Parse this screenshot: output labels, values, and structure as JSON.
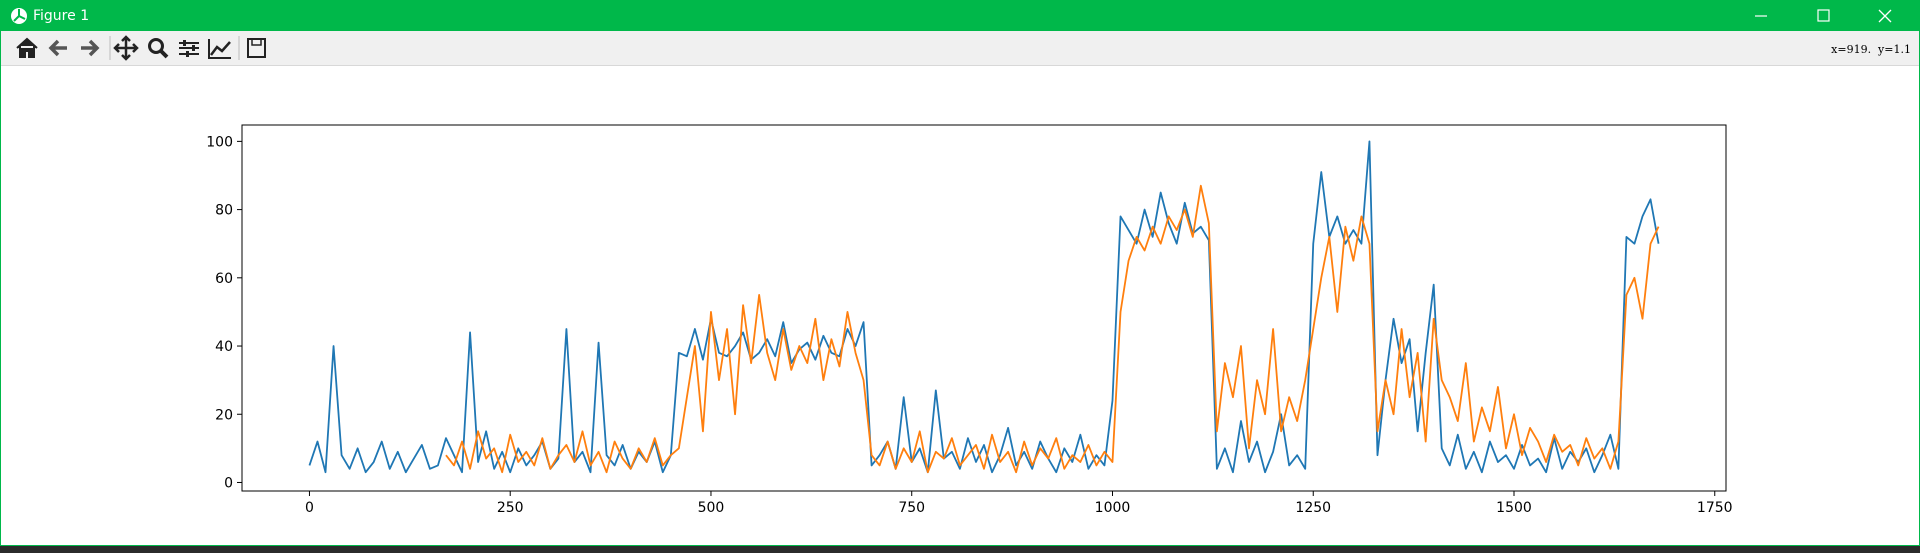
{
  "window": {
    "title": "Figure 1",
    "status": "x=919.  y=1.1"
  },
  "chart_data": {
    "type": "line",
    "x": [
      0,
      10,
      20,
      30,
      40,
      50,
      60,
      70,
      80,
      90,
      100,
      110,
      120,
      130,
      140,
      150,
      160,
      170,
      180,
      190,
      200,
      210,
      220,
      230,
      240,
      250,
      260,
      270,
      280,
      290,
      300,
      310,
      320,
      330,
      340,
      350,
      360,
      370,
      380,
      390,
      400,
      410,
      420,
      430,
      440,
      450,
      460,
      470,
      480,
      490,
      500,
      510,
      520,
      530,
      540,
      550,
      560,
      570,
      580,
      590,
      600,
      610,
      620,
      630,
      640,
      650,
      660,
      670,
      680,
      690,
      700,
      710,
      720,
      730,
      740,
      750,
      760,
      770,
      780,
      790,
      800,
      810,
      820,
      830,
      840,
      850,
      860,
      870,
      880,
      890,
      900,
      910,
      920,
      930,
      940,
      950,
      960,
      970,
      980,
      990,
      1000,
      1010,
      1020,
      1030,
      1040,
      1050,
      1060,
      1070,
      1080,
      1090,
      1100,
      1110,
      1120,
      1130,
      1140,
      1150,
      1160,
      1170,
      1180,
      1190,
      1200,
      1210,
      1220,
      1230,
      1240,
      1250,
      1260,
      1270,
      1280,
      1290,
      1300,
      1310,
      1320,
      1330,
      1340,
      1350,
      1360,
      1370,
      1380,
      1390,
      1400,
      1410,
      1420,
      1430,
      1440,
      1450,
      1460,
      1470,
      1480,
      1490,
      1500,
      1510,
      1520,
      1530,
      1540,
      1550,
      1560,
      1570,
      1580,
      1590,
      1600,
      1610,
      1620,
      1630,
      1640,
      1650,
      1660,
      1670,
      1680
    ],
    "series": [
      {
        "color": "#1f77b4",
        "values": [
          5,
          12,
          3,
          40,
          8,
          4,
          10,
          3,
          6,
          12,
          4,
          9,
          3,
          7,
          11,
          4,
          5,
          13,
          8,
          3,
          44,
          6,
          15,
          4,
          9,
          3,
          10,
          5,
          8,
          12,
          4,
          7,
          45,
          6,
          9,
          3,
          41,
          8,
          5,
          11,
          4,
          9,
          6,
          12,
          3,
          8,
          38,
          37,
          45,
          36,
          48,
          38,
          37,
          40,
          44,
          36,
          38,
          42,
          37,
          47,
          35,
          39,
          41,
          36,
          43,
          38,
          37,
          45,
          40,
          47,
          5,
          8,
          12,
          4,
          25,
          6,
          10,
          3,
          27,
          7,
          9,
          4,
          13,
          6,
          11,
          3,
          8,
          16,
          5,
          9,
          4,
          12,
          7,
          3,
          10,
          6,
          14,
          4,
          8,
          5,
          24,
          78,
          74,
          70,
          80,
          72,
          85,
          76,
          70,
          82,
          73,
          75,
          71,
          4,
          10,
          3,
          18,
          6,
          12,
          3,
          9,
          20,
          5,
          8,
          4,
          70,
          91,
          72,
          78,
          70,
          74,
          70,
          100,
          8,
          30,
          48,
          35,
          42,
          15,
          38,
          58,
          10,
          5,
          14,
          4,
          9,
          3,
          12,
          6,
          8,
          4,
          11,
          5,
          7,
          3,
          13,
          4,
          9,
          6,
          10,
          3,
          8,
          14,
          4,
          72,
          70,
          78,
          83,
          70
        ]
      },
      {
        "color": "#ff7f0e",
        "values": [
          null,
          null,
          null,
          null,
          null,
          null,
          null,
          null,
          null,
          null,
          null,
          null,
          null,
          null,
          null,
          null,
          null,
          8,
          5,
          12,
          4,
          15,
          7,
          10,
          3,
          14,
          6,
          9,
          5,
          13,
          4,
          8,
          11,
          6,
          15,
          5,
          9,
          3,
          12,
          7,
          4,
          10,
          6,
          13,
          5,
          8,
          10,
          25,
          40,
          15,
          50,
          30,
          45,
          20,
          52,
          35,
          55,
          38,
          30,
          45,
          33,
          40,
          35,
          48,
          30,
          42,
          34,
          50,
          38,
          30,
          8,
          5,
          12,
          4,
          10,
          6,
          15,
          3,
          9,
          7,
          13,
          5,
          8,
          11,
          4,
          14,
          6,
          9,
          3,
          12,
          5,
          10,
          7,
          13,
          4,
          8,
          6,
          11,
          5,
          9,
          6,
          50,
          65,
          72,
          68,
          75,
          70,
          78,
          74,
          80,
          72,
          87,
          76,
          15,
          35,
          25,
          40,
          10,
          30,
          20,
          45,
          15,
          25,
          18,
          30,
          45,
          60,
          72,
          50,
          75,
          65,
          78,
          70,
          15,
          30,
          20,
          45,
          25,
          38,
          12,
          48,
          30,
          25,
          18,
          35,
          12,
          22,
          15,
          28,
          10,
          20,
          8,
          16,
          12,
          6,
          14,
          9,
          11,
          5,
          13,
          7,
          10,
          4,
          12,
          55,
          60,
          48,
          70,
          75
        ]
      }
    ],
    "xlim": [
      -84,
      1764
    ],
    "ylim": [
      -2.5,
      104.8
    ],
    "xticks": [
      0,
      250,
      500,
      750,
      1000,
      1250,
      1500,
      1750
    ],
    "yticks": [
      0,
      20,
      40,
      60,
      80,
      100
    ]
  }
}
